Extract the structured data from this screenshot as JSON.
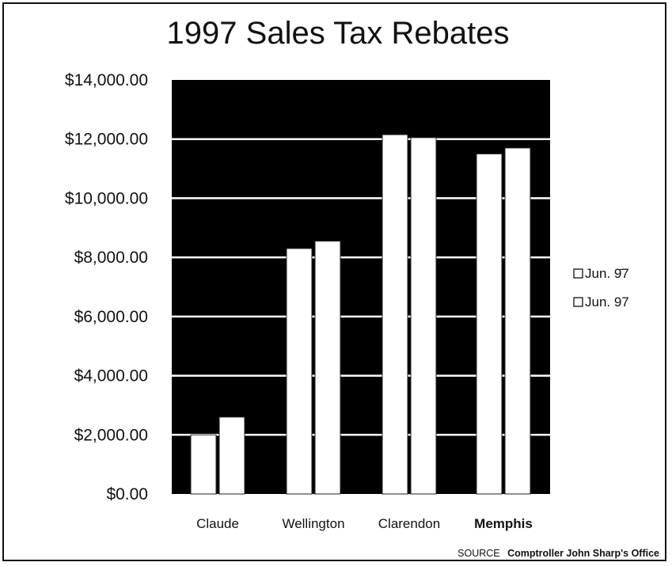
{
  "chart_data": {
    "type": "bar",
    "title": "1997 Sales Tax Rebates",
    "categories": [
      "Claude",
      "Wellington",
      "Clarendon",
      "Memphis"
    ],
    "series": [
      {
        "name": "Jun. 9̄7",
        "values": [
          2000,
          8300,
          12150,
          11500
        ]
      },
      {
        "name": "Jun. 97",
        "values": [
          2600,
          8550,
          12050,
          11700
        ]
      }
    ],
    "ylim": [
      0,
      14000
    ],
    "yticks": [
      0,
      2000,
      4000,
      6000,
      8000,
      10000,
      12000,
      14000
    ],
    "ytick_labels": [
      "$0.00",
      "$2,000.00",
      "$4,000.00",
      "$6,000.00",
      "$8,000.00",
      "$10,000.00",
      "$12,000.00",
      "$14,000.00"
    ],
    "grid": true,
    "legend_position": "right",
    "plot_background": "#000000",
    "bar_color": "#ffffff",
    "source_prefix": "SOURCE",
    "source_name": "Comptroller John Sharp's Office"
  }
}
